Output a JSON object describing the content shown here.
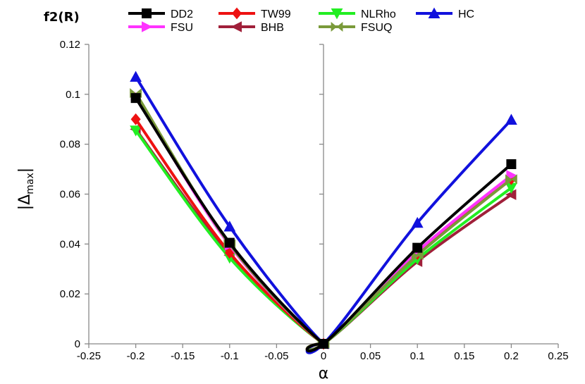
{
  "chart_data": {
    "type": "line",
    "title": "f2(R)",
    "xlabel": "α",
    "ylabel_main": "|Δ",
    "ylabel_sub": "max",
    "ylabel_close": "|",
    "xlim": [
      -0.25,
      0.25
    ],
    "ylim": [
      0,
      0.12
    ],
    "grid": false,
    "legend_position": "top",
    "x_ticks": [
      -0.25,
      -0.2,
      -0.15,
      -0.1,
      -0.05,
      0,
      0.05,
      0.1,
      0.15,
      0.2,
      0.25
    ],
    "x_tick_labels": [
      "-0.25",
      "-0.2",
      "-0.15",
      "-0.1",
      "-0.05",
      "0",
      "0.05",
      "0.1",
      "0.15",
      "0.2",
      "0.25"
    ],
    "y_ticks": [
      0,
      0.02,
      0.04,
      0.06,
      0.08,
      0.1,
      0.12
    ],
    "y_tick_labels": [
      "0",
      "0.02",
      "0.04",
      "0.06",
      "0.08",
      "0.1",
      "0.12"
    ],
    "x": [
      -0.2,
      -0.1,
      0,
      0.1,
      0.2
    ],
    "series": [
      {
        "name": "DD2",
        "color": "#000000",
        "marker": "square",
        "values": [
          0.0985,
          0.0405,
          0,
          0.0385,
          0.072
        ]
      },
      {
        "name": "TW99",
        "color": "#ee1111",
        "marker": "diamond",
        "values": [
          0.09,
          0.0365,
          0,
          0.036,
          0.066
        ]
      },
      {
        "name": "NLRho",
        "color": "#22ee22",
        "marker": "triangle-down",
        "values": [
          0.0855,
          0.0345,
          0,
          0.034,
          0.0625
        ]
      },
      {
        "name": "HC",
        "color": "#1111dd",
        "marker": "triangle-up",
        "values": [
          0.107,
          0.047,
          0,
          0.0485,
          0.0898
        ]
      },
      {
        "name": "FSU",
        "color": "#ff33ff",
        "marker": "triangle-right",
        "values": [
          0.0995,
          0.0395,
          0,
          0.037,
          0.0675
        ]
      },
      {
        "name": "BHB",
        "color": "#a0203a",
        "marker": "triangle-left",
        "values": [
          0.086,
          0.0355,
          0,
          0.033,
          0.0598
        ]
      },
      {
        "name": "FSUQ",
        "color": "#7a9a3a",
        "marker": "bowtie",
        "values": [
          0.1005,
          0.04,
          0,
          0.0355,
          0.066
        ]
      }
    ]
  }
}
